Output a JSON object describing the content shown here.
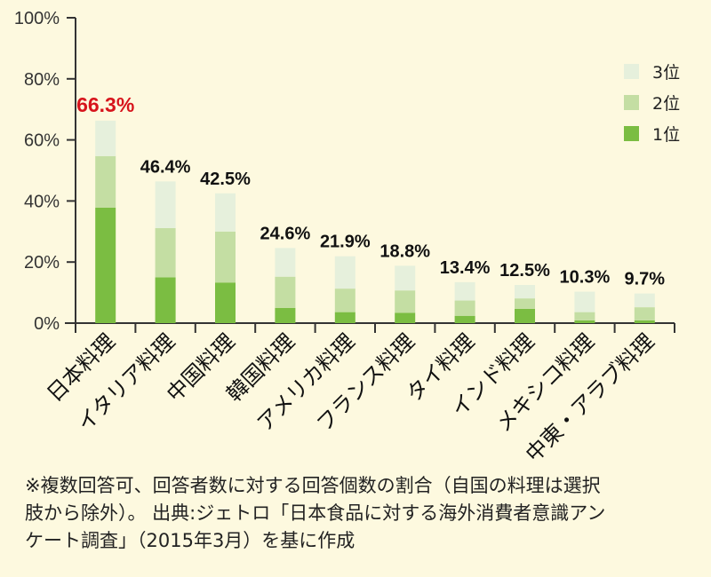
{
  "chart_data": {
    "type": "bar",
    "stacked": true,
    "categories": [
      "日本料理",
      "イタリア料理",
      "中国料理",
      "韓国料理",
      "アメリカ料理",
      "フランス料理",
      "タイ料理",
      "インド料理",
      "メキシコ料理",
      "中東・アラブ料理"
    ],
    "totals": [
      "66.3%",
      "46.4%",
      "42.5%",
      "24.6%",
      "21.9%",
      "18.8%",
      "13.4%",
      "12.5%",
      "10.3%",
      "9.7%"
    ],
    "total_values": [
      66.3,
      46.4,
      42.5,
      24.6,
      21.9,
      18.8,
      13.4,
      12.5,
      10.3,
      9.7
    ],
    "series": [
      {
        "name": "1位",
        "color": "#7bbd42",
        "values": [
          37.8,
          15.0,
          13.3,
          5.0,
          3.6,
          3.4,
          2.4,
          4.7,
          0.9,
          0.9
        ]
      },
      {
        "name": "2位",
        "color": "#c4dea3",
        "values": [
          16.9,
          16.1,
          16.7,
          10.2,
          7.7,
          7.3,
          5.0,
          3.4,
          2.7,
          4.3
        ]
      },
      {
        "name": "3位",
        "color": "#e6f0dc",
        "values": [
          11.6,
          15.3,
          12.5,
          9.4,
          10.6,
          8.1,
          6.0,
          4.4,
          6.7,
          4.5
        ]
      }
    ],
    "highlight_color": "#d7141c",
    "yticks": [
      "0%",
      "20%",
      "40%",
      "60%",
      "80%",
      "100%"
    ],
    "ylim": [
      0,
      100
    ],
    "legend": [
      "3位",
      "2位",
      "1位"
    ],
    "legend_position": "top-right",
    "grid": false
  },
  "footnote": {
    "line1": "※複数回答可、回答者数に対する回答個数の割合（自国の料理は選択",
    "line2": "肢から除外）。 出典:ジェトロ「日本食品に対する海外消費者意識アン",
    "line3": "ケート調査」（2015年3月）を基に作成"
  }
}
